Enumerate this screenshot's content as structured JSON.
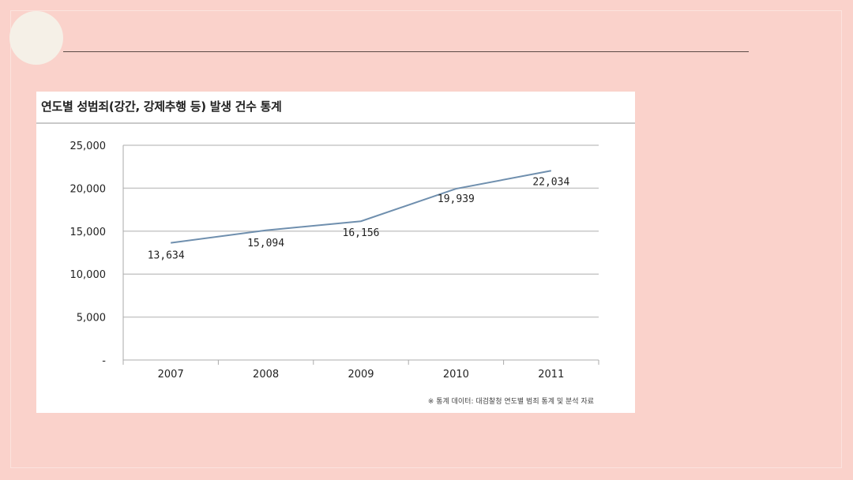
{
  "slide": {
    "accent_circle_color": "#f5f0e7",
    "background_color": "#fad2cb"
  },
  "chart_data": {
    "type": "line",
    "title": "연도별 성범죄(강간, 강제추행 등) 발생 건수 통계",
    "categories": [
      "2007",
      "2008",
      "2009",
      "2010",
      "2011"
    ],
    "series": [
      {
        "values": [
          13634,
          15094,
          16156,
          19939,
          22034
        ],
        "color": "#6f8fae"
      }
    ],
    "data_labels": [
      "13,634",
      "15,094",
      "16,156",
      "19,939",
      "22,034"
    ],
    "yticks": [
      0,
      5000,
      10000,
      15000,
      20000,
      25000
    ],
    "ytick_labels": [
      "-",
      "5,000",
      "10,000",
      "15,000",
      "20,000",
      "25,000"
    ],
    "ylim": [
      0,
      25000
    ],
    "grid": true,
    "xlabel": "",
    "ylabel": "",
    "footnote": "※ 통계 데이터: 대검찰청 연도별 범죄 통계 및 분석 자료"
  }
}
